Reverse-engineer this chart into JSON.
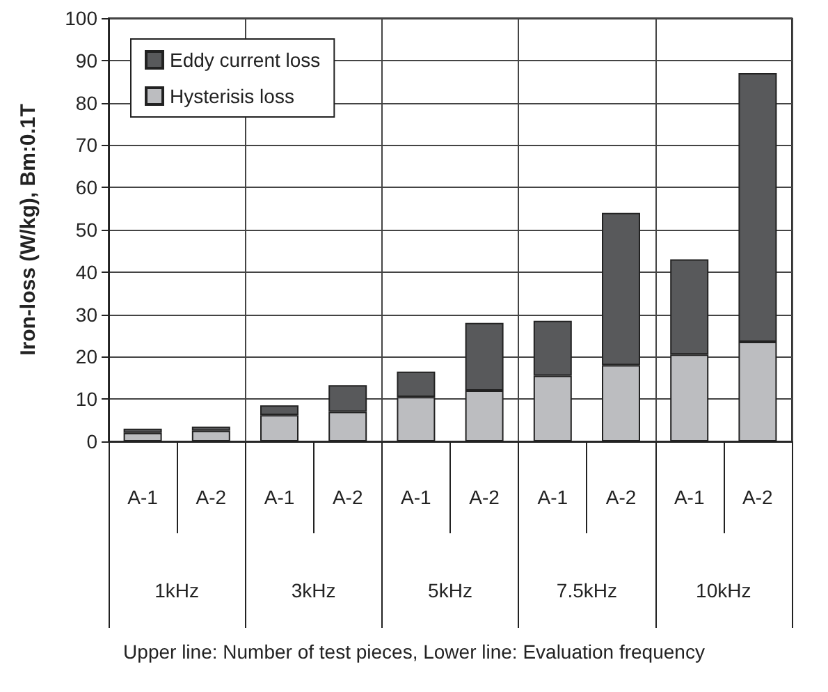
{
  "chart_data": {
    "type": "bar",
    "stacked": true,
    "ylabel": "Iron-loss (W/kg), Bm:0.1T",
    "categories": [
      "A-1",
      "A-2",
      "A-1",
      "A-2",
      "A-1",
      "A-2",
      "A-1",
      "A-2",
      "A-1",
      "A-2"
    ],
    "annotations": [
      "1kHz",
      "3kHz",
      "5kHz",
      "7.5kHz",
      "10kHz",
      "Upper line: Number of test pieces, Lower line: Evaluation frequency"
    ],
    "series": [
      {
        "name": "Hysterisis loss",
        "color": "#bcbdc0",
        "values": [
          2,
          2.5,
          6.2,
          7,
          10.5,
          12,
          15.5,
          18,
          20.5,
          23.5
        ]
      },
      {
        "name": "Eddy current loss",
        "color": "#58595b",
        "values": [
          1,
          1,
          2.3,
          6.3,
          6,
          16,
          13,
          36,
          22.5,
          63.5
        ]
      }
    ],
    "ylim": [
      0,
      100
    ],
    "yticks": [
      0,
      10,
      20,
      30,
      40,
      50,
      60,
      70,
      80,
      90,
      100
    ],
    "grid": true,
    "legend": "top left"
  }
}
